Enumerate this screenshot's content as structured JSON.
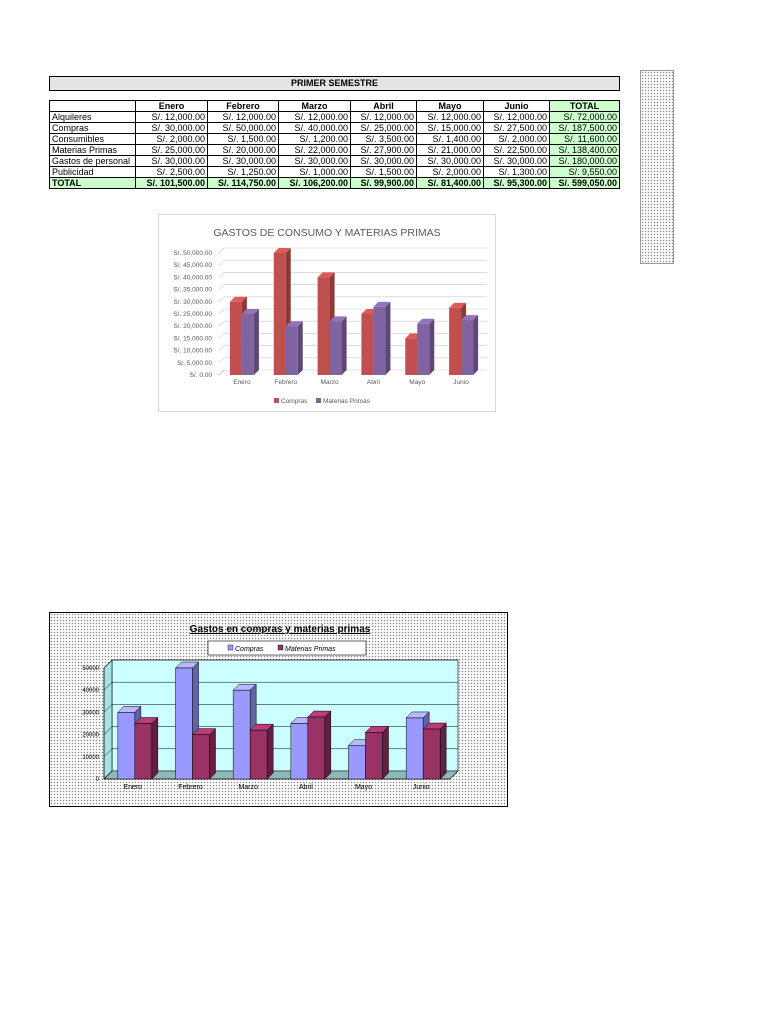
{
  "sheet": {
    "title": "PRIMER SEMESTRE",
    "headers": [
      "",
      "Enero",
      "Febrero",
      "Marzo",
      "Abril",
      "Mayo",
      "Junio",
      "TOTAL"
    ],
    "rows": [
      {
        "label": "Alquileres",
        "values": [
          "S/. 12,000.00",
          "S/. 12,000.00",
          "S/. 12,000.00",
          "S/. 12,000.00",
          "S/. 12,000.00",
          "S/. 12,000.00"
        ],
        "total": "S/. 72,000.00"
      },
      {
        "label": "Compras",
        "values": [
          "S/. 30,000.00",
          "S/. 50,000.00",
          "S/. 40,000.00",
          "S/. 25,000.00",
          "S/. 15,000.00",
          "S/. 27,500.00"
        ],
        "total": "S/. 187,500.00"
      },
      {
        "label": "Consumibles",
        "values": [
          "S/. 2,000.00",
          "S/. 1,500.00",
          "S/. 1,200.00",
          "S/. 3,500.00",
          "S/. 1,400.00",
          "S/. 2,000.00"
        ],
        "total": "S/. 11,600.00"
      },
      {
        "label": "Materias Primas",
        "values": [
          "S/. 25,000.00",
          "S/. 20,000.00",
          "S/. 22,000.00",
          "S/. 27,900.00",
          "S/. 21,000.00",
          "S/. 22,500.00"
        ],
        "total": "S/. 138,400.00"
      },
      {
        "label": "Gastos de personal",
        "values": [
          "S/. 30,000.00",
          "S/. 30,000.00",
          "S/. 30,000.00",
          "S/. 30,000.00",
          "S/. 30,000.00",
          "S/. 30,000.00"
        ],
        "total": "S/. 180,000.00"
      },
      {
        "label": "Publicidad",
        "values": [
          "S/. 2,500.00",
          "S/. 1,250.00",
          "S/. 1,000.00",
          "S/. 1,500.00",
          "S/. 2,000.00",
          "S/. 1,300.00"
        ],
        "total": "S/. 9,550.00"
      }
    ],
    "total_row": {
      "label": "TOTAL",
      "values": [
        "S/. 101,500.00",
        "S/. 114,750.00",
        "S/. 106,200.00",
        "S/. 99,900.00",
        "S/. 81,400.00",
        "S/. 95,300.00"
      ],
      "total": "S/. 599,050.00"
    }
  },
  "chart_data": [
    {
      "type": "bar",
      "title": "GASTOS DE CONSUMO Y MATERIAS PRIMAS",
      "categories": [
        "Enero",
        "Febrero",
        "Marzo",
        "Abril",
        "Mayo",
        "Junio"
      ],
      "series": [
        {
          "name": "Compras",
          "values": [
            30000,
            50000,
            40000,
            25000,
            15000,
            27500
          ],
          "color": "#c0504d"
        },
        {
          "name": "Materias Primas",
          "values": [
            25000,
            20000,
            22000,
            27900,
            21000,
            22500
          ],
          "color": "#8064a2"
        }
      ],
      "ylim": [
        0,
        50000
      ],
      "yticks": [
        "S/. 0.00",
        "S/. 5,000.00",
        "S/. 10,000.00",
        "S/. 15,000.00",
        "S/. 20,000.00",
        "S/. 25,000.00",
        "S/. 30,000.00",
        "S/. 35,000.00",
        "S/. 40,000.00",
        "S/. 45,000.00",
        "S/. 50,000.00"
      ],
      "grid": true,
      "legend": "bottom"
    },
    {
      "type": "bar",
      "title": "Gastos en compras y materias primas",
      "categories": [
        "Enero",
        "Febrero",
        "Marzo",
        "Abril",
        "Mayo",
        "Junio"
      ],
      "series": [
        {
          "name": "Compras",
          "values": [
            30000,
            50000,
            40000,
            25000,
            15000,
            27500
          ],
          "color": "#9999ff"
        },
        {
          "name": "Materias Primas",
          "values": [
            25000,
            20000,
            22000,
            27900,
            21000,
            22500
          ],
          "color": "#993366"
        }
      ],
      "ylim": [
        0,
        50000
      ],
      "yticks": [
        "0",
        "10000",
        "20000",
        "30000",
        "40000",
        "50000"
      ],
      "grid": true,
      "legend": "top"
    }
  ]
}
